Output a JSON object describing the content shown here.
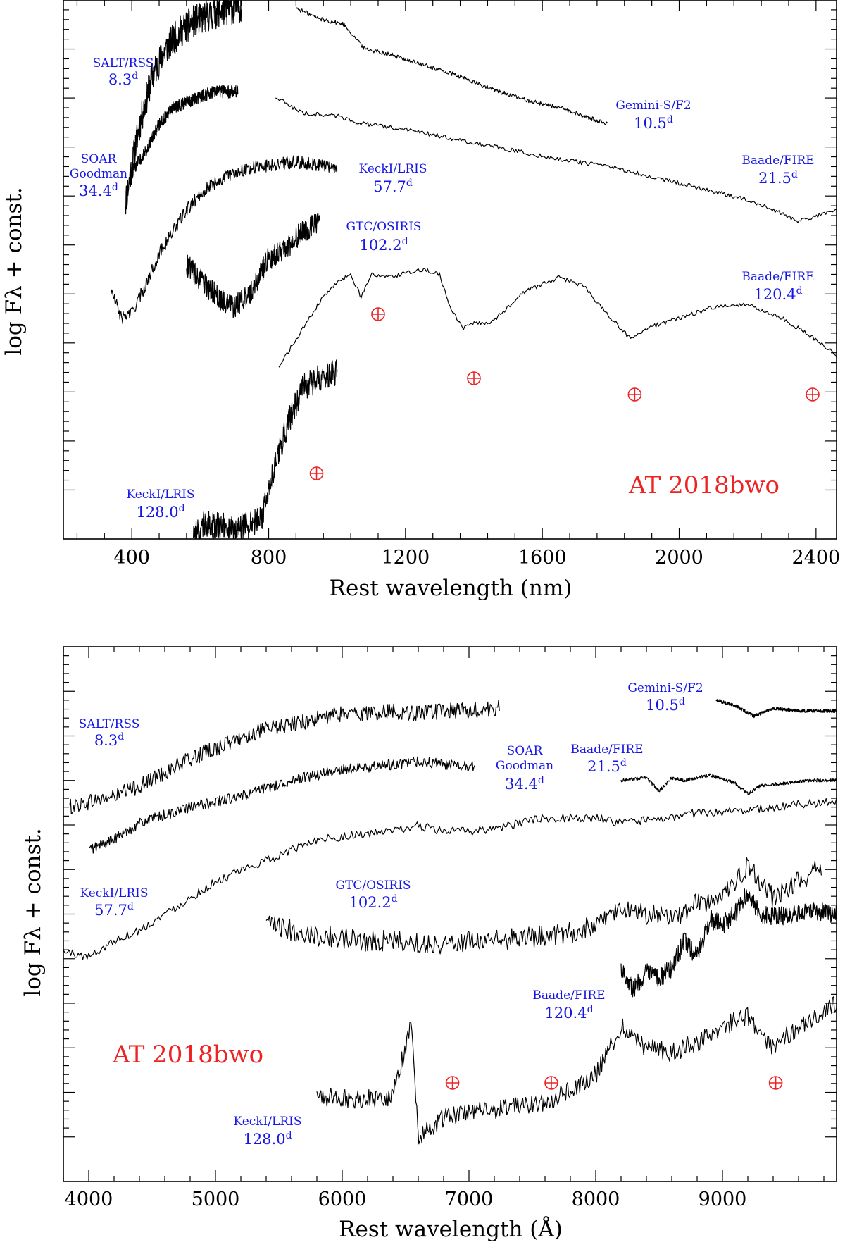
{
  "chart_data": [
    {
      "type": "line",
      "xlabel": "Rest wavelength (nm)",
      "ylabel": "log Fλ + const.",
      "xlim": [
        200,
        2460
      ],
      "ylim": [
        0,
        10
      ],
      "x_ticks": [
        400,
        800,
        1200,
        1600,
        2000,
        2400
      ],
      "x_tick_labels": [
        "400",
        "800",
        "1200",
        "1600",
        "2000",
        "2400"
      ],
      "y_tick_labels_shown": false,
      "grid": false,
      "object_label": "AT 2018bwo",
      "series": [
        {
          "name": "SALT/RSS",
          "phase": "8.3d",
          "x": [
            380,
            420,
            460,
            500,
            540,
            580,
            620,
            660,
            700,
            720
          ],
          "y": [
            6.2,
            7.6,
            8.6,
            9.1,
            9.4,
            9.6,
            9.7,
            9.8,
            9.85,
            9.9
          ],
          "noise": 0.3
        },
        {
          "name": "Gemini-S/F2",
          "phase": "10.5d",
          "x": [
            880,
            950,
            1020,
            1080,
            1150,
            1250,
            1350,
            1450,
            1550,
            1650,
            1790
          ],
          "y": [
            9.85,
            9.65,
            9.55,
            9.1,
            9.0,
            8.8,
            8.6,
            8.35,
            8.15,
            8.0,
            7.7
          ],
          "noise": 0.04
        },
        {
          "name": "SOAR Goodman",
          "phase": "34.4d",
          "x": [
            400,
            440,
            480,
            520,
            560,
            600,
            640,
            680,
            710
          ],
          "y": [
            6.8,
            7.2,
            7.7,
            8.0,
            8.1,
            8.2,
            8.3,
            8.3,
            8.3
          ],
          "noise": 0.12
        },
        {
          "name": "Baade/FIRE",
          "phase": "21.5d",
          "x": [
            820,
            900,
            1000,
            1080,
            1200,
            1400,
            1600,
            1800,
            2000,
            2200,
            2350,
            2460
          ],
          "y": [
            8.2,
            7.9,
            7.85,
            7.7,
            7.6,
            7.35,
            7.1,
            6.9,
            6.6,
            6.3,
            5.9,
            6.1
          ],
          "noise": 0.04
        },
        {
          "name": "KeckI/LRIS",
          "phase": "57.7d",
          "x": [
            340,
            370,
            400,
            440,
            480,
            520,
            560,
            600,
            640,
            700,
            760,
            820,
            880,
            940,
            1000
          ],
          "y": [
            4.6,
            4.1,
            4.2,
            4.7,
            5.3,
            5.7,
            6.1,
            6.4,
            6.6,
            6.8,
            6.9,
            6.95,
            7.0,
            6.95,
            6.9
          ],
          "noise": 0.12
        },
        {
          "name": "GTC/OSIRIS",
          "phase": "102.2d",
          "x": [
            560,
            600,
            650,
            700,
            750,
            800,
            850,
            900,
            950
          ],
          "y": [
            5.1,
            4.8,
            4.5,
            4.3,
            4.6,
            5.2,
            5.4,
            5.7,
            5.9
          ],
          "noise": 0.22
        },
        {
          "name": "Baade/FIRE",
          "phase": "120.4d",
          "x": [
            830,
            900,
            960,
            1010,
            1040,
            1070,
            1100,
            1150,
            1250,
            1300,
            1330,
            1370,
            1400,
            1450,
            1550,
            1650,
            1720,
            1800,
            1860,
            1900,
            2000,
            2100,
            2200,
            2300,
            2400,
            2460
          ],
          "y": [
            3.2,
            3.9,
            4.5,
            4.8,
            4.9,
            4.5,
            4.9,
            4.85,
            5.0,
            4.9,
            4.3,
            3.9,
            4.0,
            4.0,
            4.6,
            4.85,
            4.7,
            4.1,
            3.7,
            3.9,
            4.1,
            4.3,
            4.35,
            4.1,
            3.7,
            3.4
          ],
          "noise": 0.04
        },
        {
          "name": "KeckI/LRIS",
          "phase": "128.0d",
          "x": [
            580,
            620,
            660,
            700,
            740,
            780,
            820,
            860,
            900,
            950,
            1000
          ],
          "y": [
            0.1,
            0.3,
            0.25,
            0.2,
            0.25,
            0.4,
            1.4,
            2.2,
            2.8,
            3.0,
            3.1
          ],
          "noise": 0.25
        }
      ],
      "telluric_markers_x": [
        940,
        1120,
        1400,
        1870,
        2390
      ]
    },
    {
      "type": "line",
      "xlabel": "Rest wavelength (Å)",
      "ylabel": "log Fλ + const.",
      "xlim": [
        3800,
        9900
      ],
      "ylim": [
        0,
        10
      ],
      "x_ticks": [
        4000,
        5000,
        6000,
        7000,
        8000,
        9000
      ],
      "x_tick_labels": [
        "4000",
        "5000",
        "6000",
        "7000",
        "8000",
        "9000"
      ],
      "y_tick_labels_shown": false,
      "grid": false,
      "object_label": "AT 2018bwo",
      "series": [
        {
          "name": "SALT/RSS",
          "phase": "8.3d",
          "x": [
            3850,
            4000,
            4200,
            4400,
            4600,
            4800,
            5000,
            5200,
            5400,
            5600,
            5800,
            6000,
            6200,
            6400,
            6600,
            6800,
            7000,
            7240
          ],
          "y": [
            7.0,
            7.1,
            7.2,
            7.4,
            7.65,
            7.9,
            8.1,
            8.3,
            8.45,
            8.55,
            8.65,
            8.75,
            8.75,
            8.8,
            8.75,
            8.8,
            8.8,
            8.85
          ],
          "noise": 0.15
        },
        {
          "name": "Gemini-S/F2",
          "phase": "10.5d",
          "x": [
            8950,
            9100,
            9250,
            9400,
            9600,
            9800,
            9900
          ],
          "y": [
            9.0,
            8.9,
            8.7,
            8.85,
            8.8,
            8.8,
            8.8
          ],
          "noise": 0.03
        },
        {
          "name": "SOAR Goodman",
          "phase": "34.4d",
          "x": [
            4000,
            4200,
            4400,
            4600,
            4800,
            5000,
            5200,
            5400,
            5600,
            5800,
            6000,
            6200,
            6400,
            6600,
            6800,
            7050
          ],
          "y": [
            6.2,
            6.4,
            6.7,
            6.85,
            7.0,
            7.1,
            7.2,
            7.35,
            7.5,
            7.6,
            7.7,
            7.75,
            7.8,
            7.85,
            7.8,
            7.75
          ],
          "noise": 0.1
        },
        {
          "name": "Baade/FIRE",
          "phase": "21.5d",
          "x": [
            8200,
            8400,
            8500,
            8600,
            8700,
            8900,
            9100,
            9200,
            9300,
            9500,
            9700,
            9900
          ],
          "y": [
            7.5,
            7.55,
            7.3,
            7.55,
            7.5,
            7.6,
            7.45,
            7.25,
            7.4,
            7.45,
            7.5,
            7.5
          ],
          "noise": 0.03
        },
        {
          "name": "KeckI/LRIS",
          "phase": "57.7d",
          "x": [
            3800,
            4000,
            4200,
            4400,
            4600,
            4800,
            5000,
            5200,
            5400,
            5600,
            5800,
            6000,
            6200,
            6400,
            6600,
            6800,
            7000,
            7200,
            7400,
            7600,
            7800,
            8000,
            8200,
            8400,
            8600,
            8800,
            9000,
            9200,
            9400,
            9600,
            9900
          ],
          "y": [
            4.3,
            4.2,
            4.5,
            4.7,
            5.0,
            5.3,
            5.6,
            5.8,
            6.0,
            6.2,
            6.4,
            6.45,
            6.5,
            6.55,
            6.65,
            6.55,
            6.55,
            6.6,
            6.7,
            6.8,
            6.8,
            6.8,
            6.7,
            6.75,
            6.8,
            6.9,
            6.9,
            6.95,
            7.0,
            7.05,
            7.1
          ],
          "noise": 0.08
        },
        {
          "name": "GTC/OSIRIS",
          "phase": "102.2d",
          "x": [
            5400,
            5600,
            5800,
            6000,
            6200,
            6400,
            6600,
            6800,
            7000,
            7200,
            7400,
            7600,
            7800,
            8000,
            8200,
            8400,
            8600,
            8800,
            9000,
            9200,
            9400,
            9600,
            9780
          ],
          "y": [
            4.8,
            4.7,
            4.6,
            4.55,
            4.5,
            4.5,
            4.45,
            4.45,
            4.5,
            4.5,
            4.55,
            4.6,
            4.65,
            4.8,
            5.1,
            5.0,
            4.9,
            5.2,
            5.3,
            5.9,
            5.3,
            5.6,
            5.9
          ],
          "noise": 0.2
        },
        {
          "name": "Baade/FIRE",
          "phase": "120.4d",
          "x": [
            8200,
            8300,
            8400,
            8500,
            8600,
            8700,
            8800,
            8900,
            9000,
            9100,
            9200,
            9300,
            9500,
            9700,
            9900
          ],
          "y": [
            4.0,
            3.6,
            3.9,
            3.8,
            4.0,
            4.5,
            4.2,
            4.9,
            4.8,
            5.0,
            5.4,
            5.0,
            4.95,
            5.05,
            5.0
          ],
          "noise": 0.18
        },
        {
          "name": "KeckI/LRIS",
          "phase": "128.0d",
          "x": [
            5800,
            6000,
            6200,
            6400,
            6550,
            6600,
            6700,
            6800,
            7000,
            7200,
            7400,
            7600,
            7800,
            8000,
            8200,
            8400,
            8600,
            8800,
            9000,
            9200,
            9400,
            9600,
            9800,
            9900
          ],
          "y": [
            1.6,
            1.55,
            1.55,
            1.6,
            3.0,
            0.8,
            1.0,
            1.2,
            1.3,
            1.35,
            1.4,
            1.5,
            1.7,
            2.0,
            2.9,
            2.5,
            2.4,
            2.6,
            2.9,
            3.1,
            2.5,
            2.9,
            3.2,
            3.3
          ],
          "noise": 0.18
        }
      ],
      "telluric_markers_x": [
        6870,
        7650,
        9420
      ]
    }
  ]
}
